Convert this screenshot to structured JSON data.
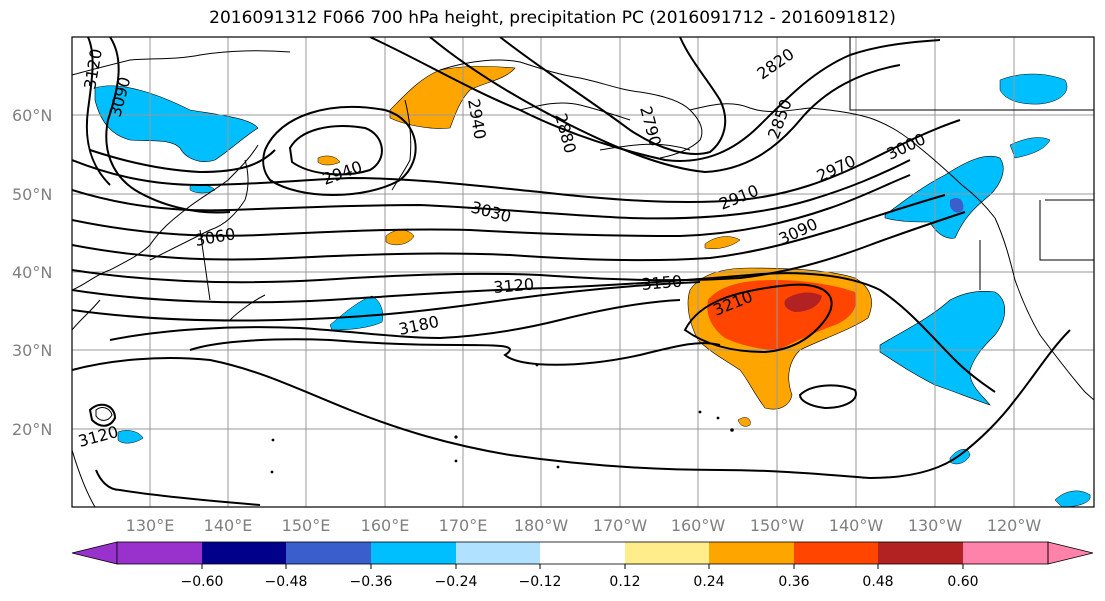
{
  "title": "2016091312 F066 700 hPa height, precipitation PC (2016091712 - 2016091812)",
  "lat_labels": [
    "60°N",
    "50°N",
    "40°N",
    "30°N",
    "20°N"
  ],
  "lon_labels": [
    "130°E",
    "140°E",
    "150°E",
    "160°E",
    "170°E",
    "180°W",
    "170°W",
    "160°W",
    "150°W",
    "140°W",
    "130°W",
    "120°W"
  ],
  "contour_labels": [
    "3120",
    "3090",
    "2940",
    "2940",
    "2880",
    "2790",
    "2820",
    "2850",
    "3000",
    "2970",
    "2910",
    "3030",
    "3060",
    "3090",
    "3120",
    "3150",
    "3180",
    "3210",
    "3120"
  ],
  "colorbar": {
    "ticks": [
      "−0.60",
      "−0.48",
      "−0.36",
      "−0.24",
      "−0.12",
      "0.12",
      "0.24",
      "0.36",
      "0.48",
      "0.60"
    ],
    "colors": [
      "#9932CC",
      "#00008B",
      "#3A5FCD",
      "#00BFFF",
      "#B0E2FF",
      "#FFFFFF",
      "#FFEC8B",
      "#FFA500",
      "#FF4500",
      "#B22222",
      "#FF82AB"
    ]
  },
  "colors": {
    "neg_light": "#00BFFF",
    "neg_mid": "#3A5FCD",
    "pos_light": "#FFA500",
    "pos_mid": "#FF4500",
    "pos_strong": "#B22222",
    "contour": "#000000",
    "grid": "#999999"
  }
}
